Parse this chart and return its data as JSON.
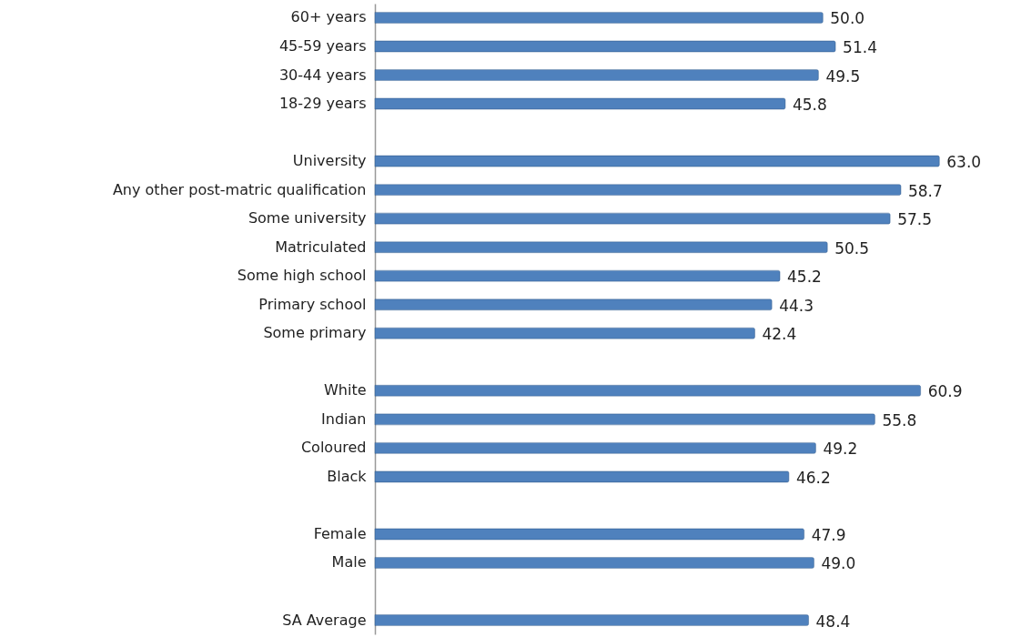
{
  "chart_data": {
    "type": "bar",
    "orientation": "horizontal",
    "color": "#4f81bd",
    "categories": [
      "60+ years",
      "45-59 years",
      "30-44 years",
      "18-29 years",
      null,
      "University",
      "Any other post-matric qualification",
      "Some university",
      "Matriculated",
      "Some high school",
      "Primary school",
      "Some primary",
      null,
      "White",
      "Indian",
      "Coloured",
      "Black",
      null,
      "Female",
      "Male",
      null,
      "SA Average"
    ],
    "values": [
      50.0,
      51.4,
      49.5,
      45.8,
      null,
      63.0,
      58.7,
      57.5,
      50.5,
      45.2,
      44.3,
      42.4,
      null,
      60.9,
      55.8,
      49.2,
      46.2,
      null,
      47.9,
      49.0,
      null,
      48.4
    ],
    "value_labels": [
      "50.0",
      "51.4",
      "49.5",
      "45.8",
      null,
      "63.0",
      "58.7",
      "57.5",
      "50.5",
      "45.2",
      "44.3",
      "42.4",
      null,
      "60.9",
      "55.8",
      "49.2",
      "46.2",
      null,
      "47.9",
      "49.0",
      null,
      "48.4"
    ]
  }
}
